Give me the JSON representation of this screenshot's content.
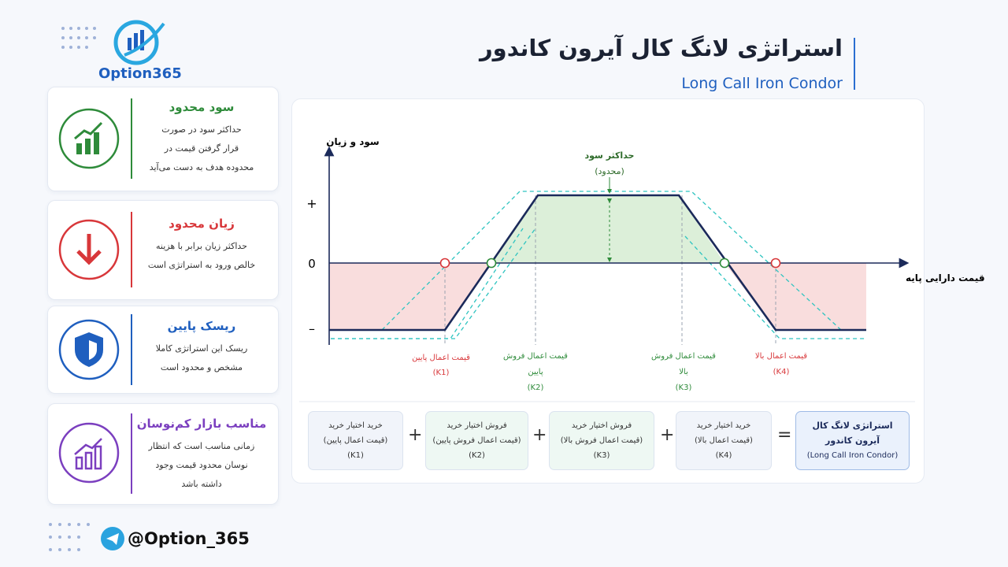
{
  "brand": {
    "logo_text": "Option365",
    "handle": "@Option_365"
  },
  "header": {
    "title": "استراتژی لانگ کال آیرون کاندور",
    "subtitle": "Long Call Iron Condor"
  },
  "cards": [
    {
      "title": "سود محدود",
      "lines": [
        "حداکثر سود در صورت",
        "قرار گرفتن قیمت در",
        "محدوده هدف به دست می‌آید"
      ]
    },
    {
      "title": "زیان محدود",
      "lines": [
        "حداکثر زیان برابر با هزینه",
        "خالص ورود به استراتژی است"
      ]
    },
    {
      "title": "ریسک پایین",
      "lines": [
        "ریسک این استراتژی کاملا",
        "مشخص و محدود است"
      ]
    },
    {
      "title": "مناسب بازار کم‌نوسان",
      "lines": [
        "زمانی مناسب است که انتظار",
        "نوسان محدود قیمت وجود",
        "داشته باشد"
      ]
    }
  ],
  "diagram": {
    "y_axis_label": "سود و زیان",
    "x_axis_label": "قیمت دارایی پایه",
    "y_levels": [
      "+",
      "0",
      "–"
    ],
    "max_profit": [
      "حداکثر سود",
      "(محدود)"
    ],
    "strikes": [
      {
        "lines": [
          "قیمت اعمال پایین"
        ],
        "code": "(K1)"
      },
      {
        "lines": [
          "قیمت اعمال فروش",
          "پایین"
        ],
        "code": "(K2)"
      },
      {
        "lines": [
          "قیمت اعمال فروش",
          "بالا"
        ],
        "code": "(K3)"
      },
      {
        "lines": [
          "قیمت اعمال بالا"
        ],
        "code": "(K4)"
      }
    ]
  },
  "formula": {
    "legs": [
      {
        "action": "خرید اختیار خرید",
        "strike": "(قیمت اعمال پایین)",
        "code": "(K1)"
      },
      {
        "action": "فروش اختیار خرید",
        "strike": "(قیمت اعمال فروش پایین)",
        "code": "(K2)"
      },
      {
        "action": "فروش اختیار خرید",
        "strike": "(قیمت اعمال فروش بالا)",
        "code": "(K3)"
      },
      {
        "action": "خرید اختیار خرید",
        "strike": "(قیمت اعمال بالا)",
        "code": "(K4)"
      }
    ],
    "plus": "+",
    "equals": "=",
    "result": [
      "استراتژی لانگ کال",
      "آیرون کاندور",
      "(Long Call Iron Condor)"
    ]
  }
}
